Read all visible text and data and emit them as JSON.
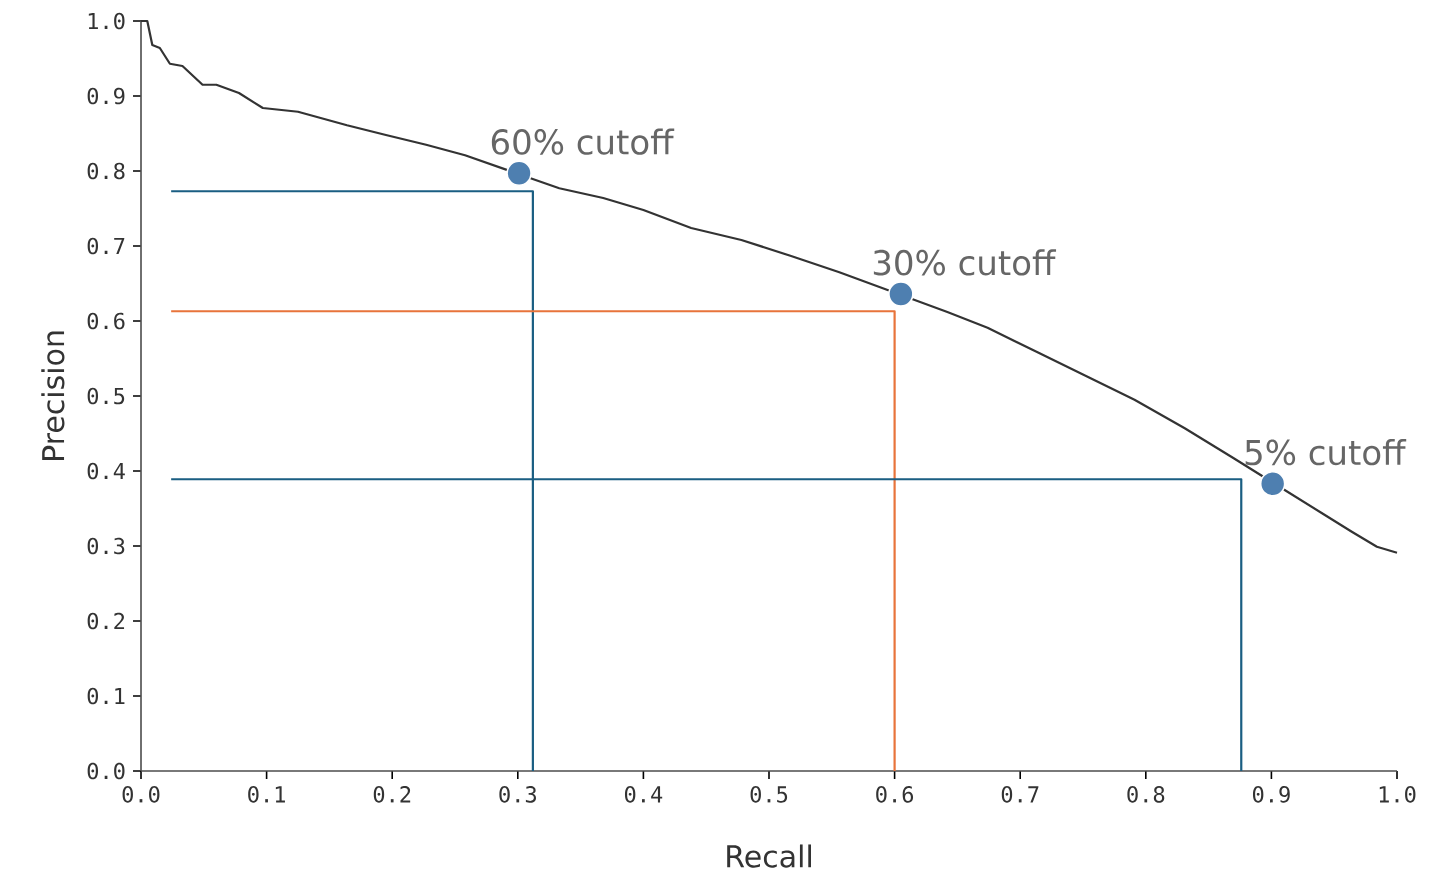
{
  "chart_data": {
    "type": "line",
    "xlabel": "Recall",
    "ylabel": "Precision",
    "xlim": [
      0,
      1
    ],
    "ylim": [
      0,
      1
    ],
    "xticks": [
      {
        "value": 0,
        "label": "0.0"
      },
      {
        "value": 0.1,
        "label": "0.1"
      },
      {
        "value": 0.2,
        "label": "0.2"
      },
      {
        "value": 0.3,
        "label": "0.3"
      },
      {
        "value": 0.4,
        "label": "0.4"
      },
      {
        "value": 0.5,
        "label": "0.5"
      },
      {
        "value": 0.6,
        "label": "0.6"
      },
      {
        "value": 0.7,
        "label": "0.7"
      },
      {
        "value": 0.8,
        "label": "0.8"
      },
      {
        "value": 0.9,
        "label": "0.9"
      },
      {
        "value": 1,
        "label": "1.0"
      }
    ],
    "yticks": [
      {
        "value": 0,
        "label": "0.0"
      },
      {
        "value": 0.1,
        "label": "0.1"
      },
      {
        "value": 0.2,
        "label": "0.2"
      },
      {
        "value": 0.3,
        "label": "0.3"
      },
      {
        "value": 0.4,
        "label": "0.4"
      },
      {
        "value": 0.5,
        "label": "0.5"
      },
      {
        "value": 0.6,
        "label": "0.6"
      },
      {
        "value": 0.7,
        "label": "0.7"
      },
      {
        "value": 0.8,
        "label": "0.8"
      },
      {
        "value": 0.9,
        "label": "0.9"
      },
      {
        "value": 1,
        "label": "1.0"
      }
    ],
    "series": [
      {
        "type": "line",
        "color": "#1a5e82",
        "x": [
          0.024,
          0.312,
          0.312
        ],
        "values": [
          0.773,
          0.773,
          0
        ]
      },
      {
        "type": "line",
        "color": "#e8743b",
        "x": [
          0.024,
          0.6,
          0.6
        ],
        "values": [
          0.613,
          0.613,
          0
        ]
      },
      {
        "type": "line",
        "color": "#1a5e82",
        "x": [
          0.024,
          0.876,
          0.876
        ],
        "values": [
          0.389,
          0.389,
          0
        ]
      },
      {
        "color": "#333333",
        "x": [
          0,
          0.005,
          0.009,
          0.015,
          0.023,
          0.033,
          0.049,
          0.06,
          0.078,
          0.097,
          0.125,
          0.164,
          0.195,
          0.227,
          0.258,
          0.333,
          0.368,
          0.4,
          0.438,
          0.478,
          0.517,
          0.556,
          0.642,
          0.674,
          0.713,
          0.752,
          0.791,
          0.831,
          0.87,
          0.94,
          0.964,
          0.984,
          1.0
        ],
        "values": [
          1.0,
          1.0,
          0.968,
          0.964,
          0.943,
          0.94,
          0.915,
          0.915,
          0.904,
          0.884,
          0.879,
          0.861,
          0.848,
          0.835,
          0.821,
          0.777,
          0.764,
          0.748,
          0.724,
          0.708,
          0.687,
          0.665,
          0.612,
          0.591,
          0.559,
          0.527,
          0.495,
          0.457,
          0.417,
          0.344,
          0.319,
          0.299,
          0.291
        ]
      },
      {
        "type": "scatter",
        "marker": "circle",
        "color": "#4e7fb0",
        "x": [
          0.301,
          0.605,
          0.901
        ],
        "values": [
          0.797,
          0.636,
          0.383
        ]
      }
    ],
    "annotations": [
      {
        "text": "60% cutoff",
        "x": 0.301,
        "y": 0.797
      },
      {
        "text": "30% cutoff",
        "x": 0.605,
        "y": 0.636
      },
      {
        "text": "5% cutoff",
        "x": 0.901,
        "y": 0.383
      }
    ]
  }
}
